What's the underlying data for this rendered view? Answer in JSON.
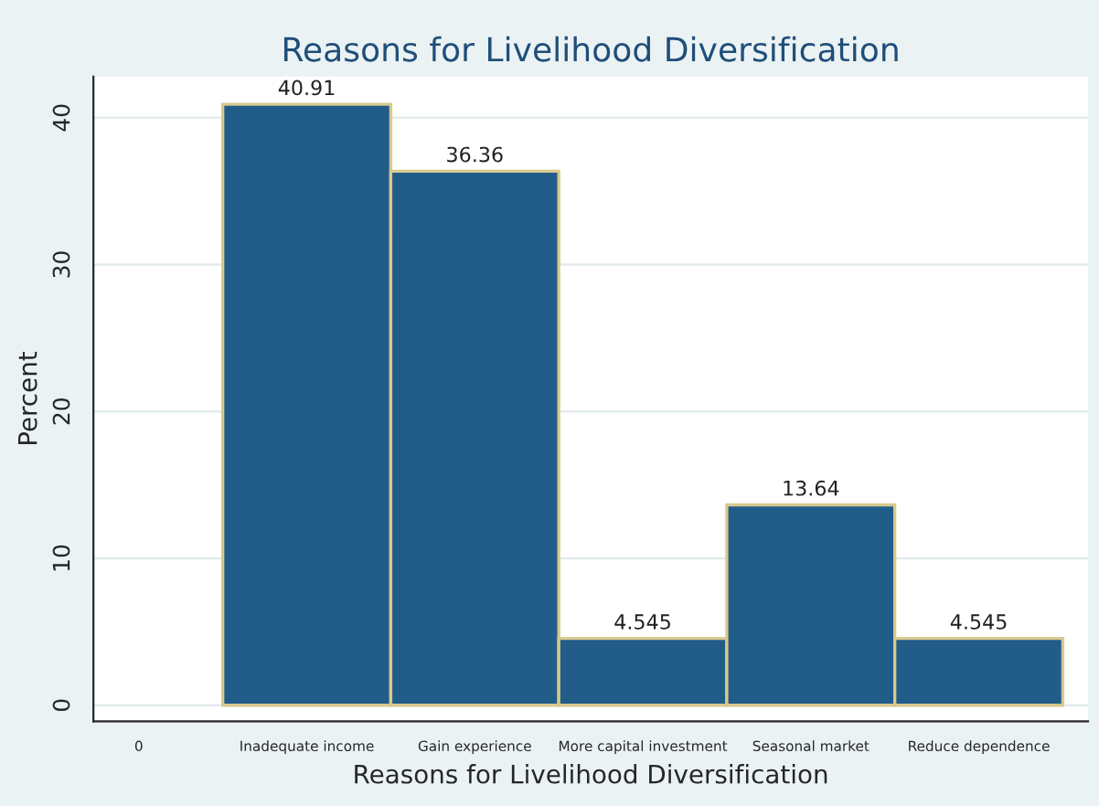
{
  "chart_data": {
    "type": "bar",
    "title": "Reasons for Livelihood Diversification",
    "xlabel": "Reasons for Livelihood Diversification",
    "ylabel": "Percent",
    "categories": [
      "0",
      "Inadequate income",
      "Gain experience",
      "More capital investment",
      "Seasonal market",
      "Reduce dependence"
    ],
    "values": [
      null,
      40.91,
      36.36,
      4.545,
      13.64,
      4.545
    ],
    "color": "#225d8a",
    "data_labels": true,
    "ylim": [
      -1.1,
      42.8
    ],
    "yticks": [
      0,
      10,
      20,
      30,
      40
    ],
    "grid": "y"
  }
}
